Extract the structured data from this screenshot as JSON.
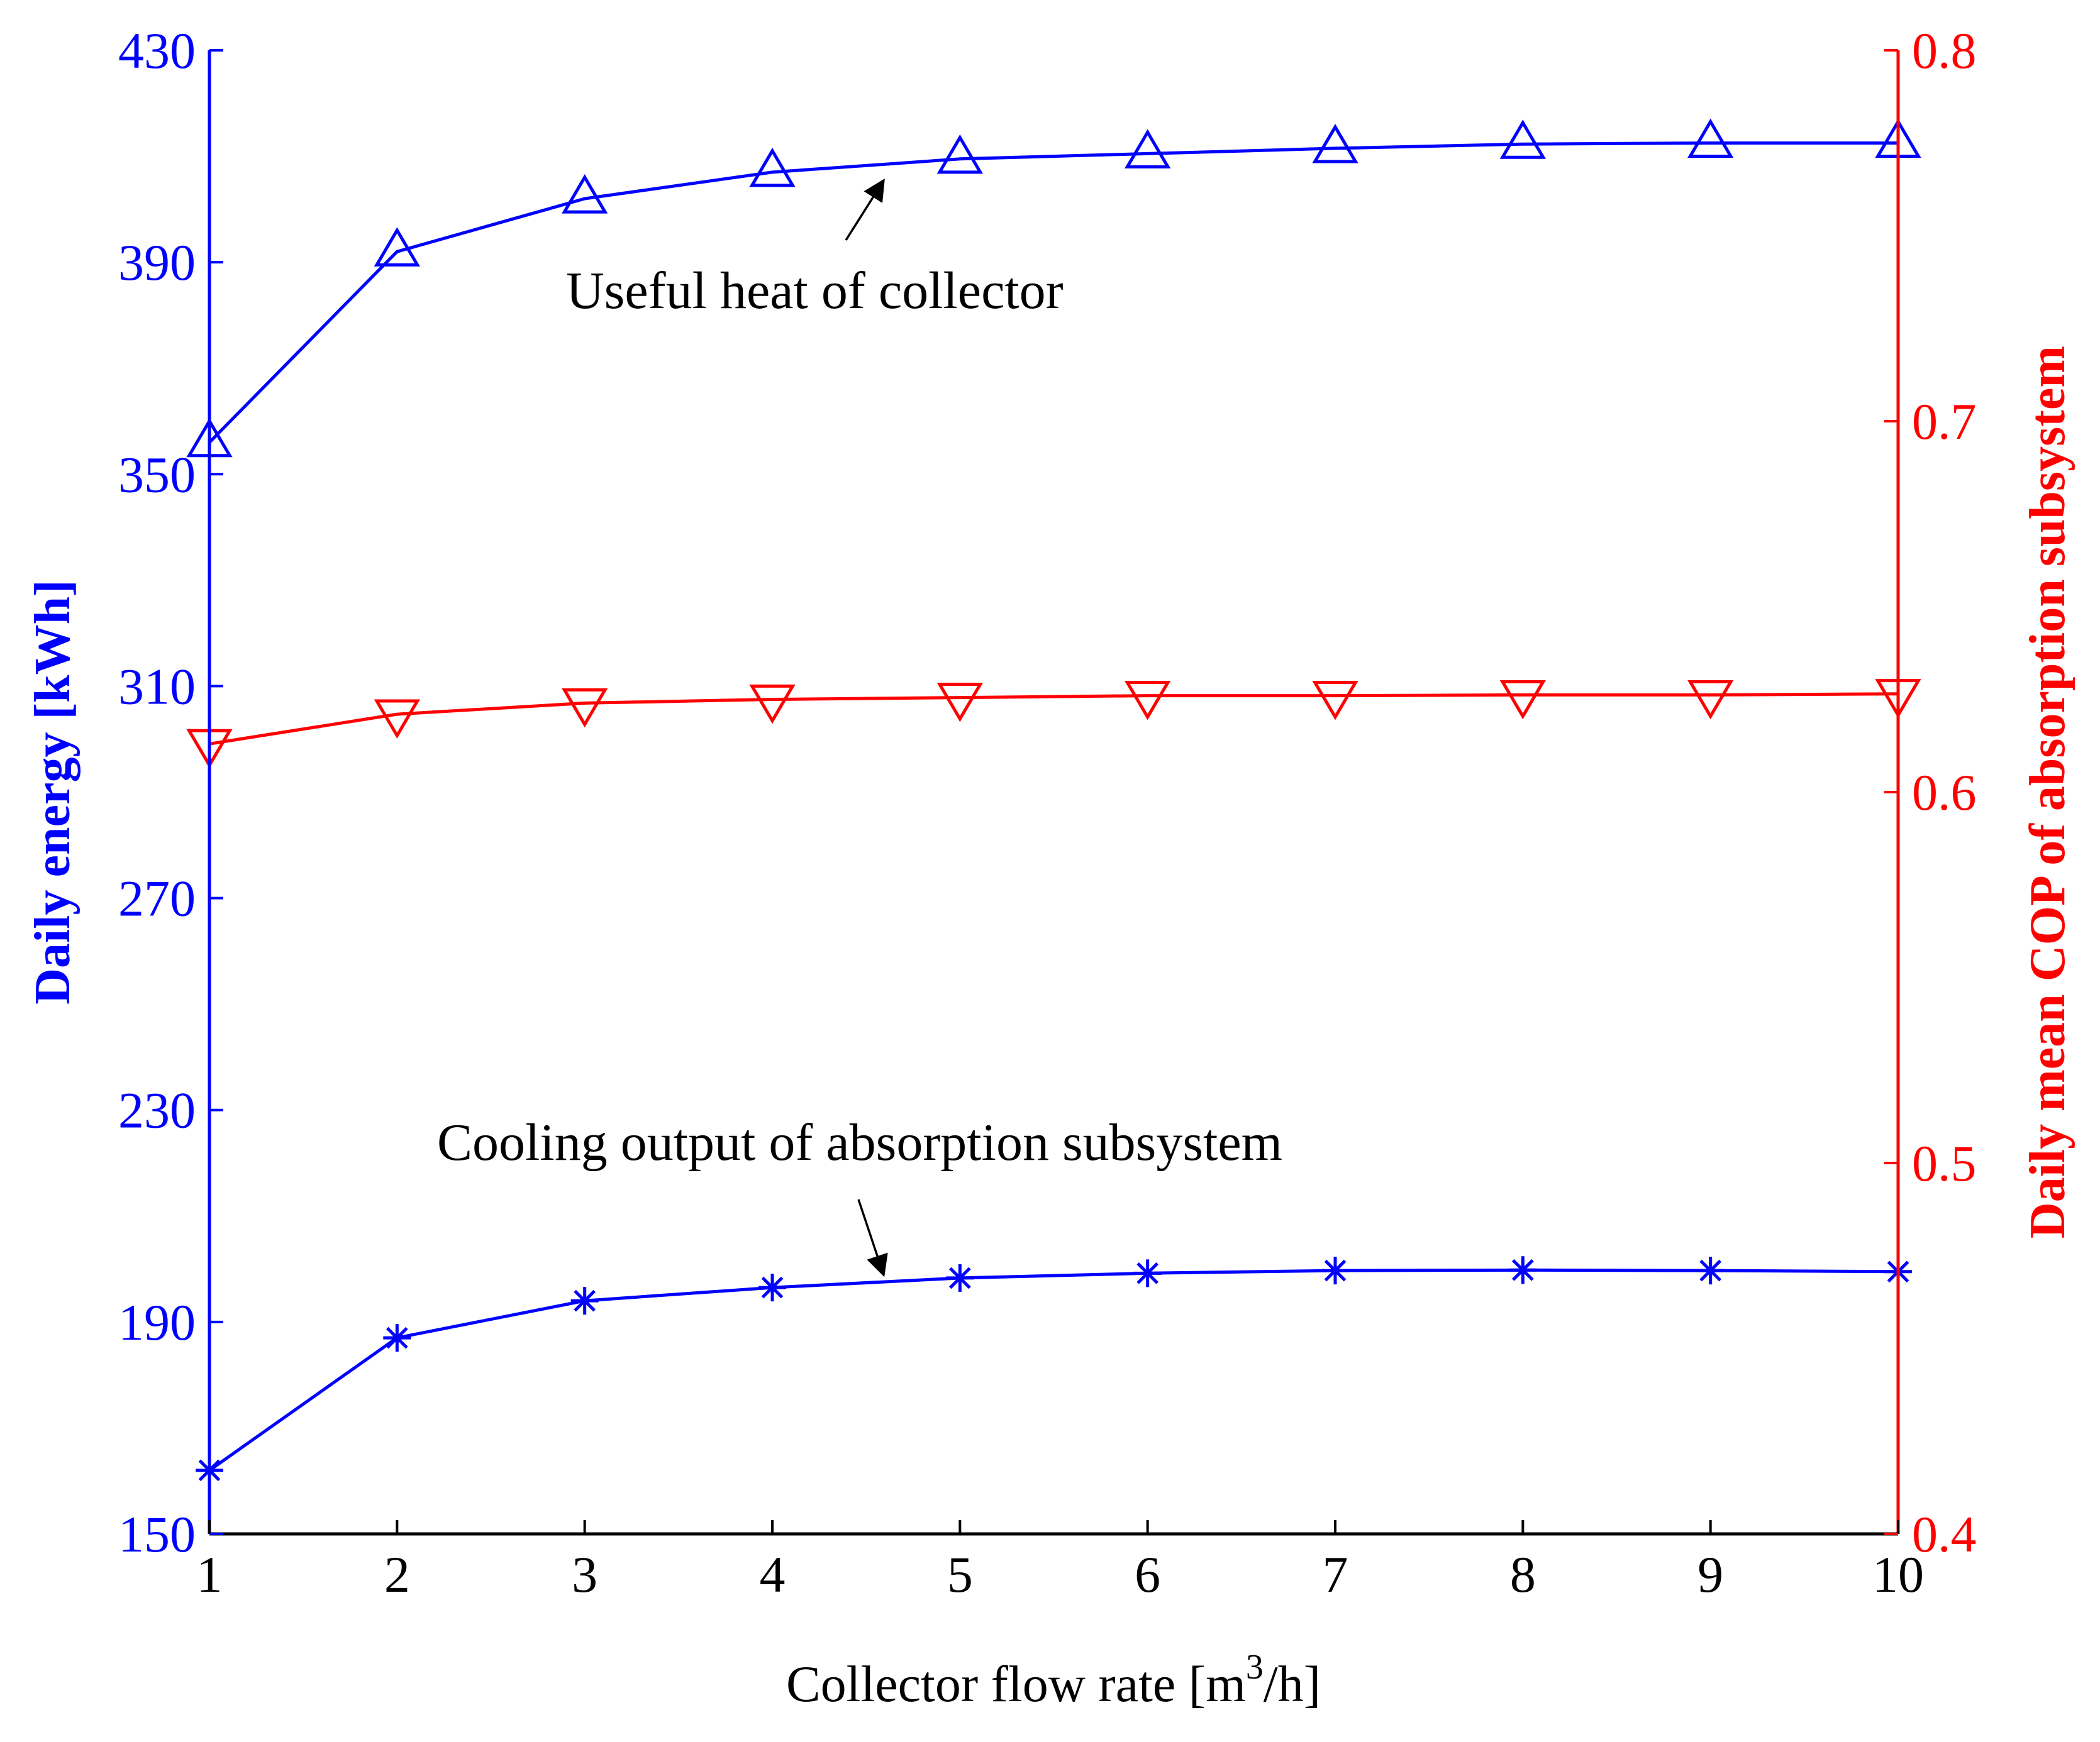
{
  "chart_data": {
    "type": "line",
    "x": [
      1,
      2,
      3,
      4,
      5,
      6,
      7,
      8,
      9,
      10
    ],
    "xlim": [
      1,
      10
    ],
    "xticks": [
      "1",
      "2",
      "3",
      "4",
      "5",
      "6",
      "7",
      "8",
      "9",
      "10"
    ],
    "xlabel": {
      "prefix": "Collector flow rate  [m",
      "sup": "3",
      "suffix": "/h]"
    },
    "y_left": {
      "label": "Daily energy [kWh]",
      "lim": [
        150,
        430
      ],
      "ticks": [
        "150",
        "190",
        "230",
        "270",
        "310",
        "350",
        "390",
        "430"
      ],
      "color": "#0000ff"
    },
    "y_right": {
      "label": "Daily mean COP of absorption subsystem",
      "lim": [
        0.4,
        0.8
      ],
      "ticks": [
        "0.4",
        "0.5",
        "0.6",
        "0.7",
        "0.8"
      ],
      "color": "#ff0000"
    },
    "grid": false,
    "series": [
      {
        "name": "Useful heat of collector",
        "axis": "left",
        "marker": "triangle-up",
        "color": "#0000ff",
        "values": [
          356,
          392,
          402,
          407,
          409.5,
          410.5,
          411.5,
          412.3,
          412.5,
          412.5
        ]
      },
      {
        "name": "Cooling output of absorption subsystem",
        "axis": "left",
        "marker": "asterisk",
        "color": "#0000ff",
        "values": [
          162,
          187,
          194,
          196.5,
          198.3,
          199.2,
          199.7,
          199.8,
          199.7,
          199.5
        ]
      },
      {
        "name": "Daily mean COP",
        "axis": "right",
        "marker": "triangle-down",
        "color": "#ff0000",
        "values": [
          0.613,
          0.621,
          0.624,
          0.625,
          0.6255,
          0.626,
          0.626,
          0.6262,
          0.6262,
          0.6265
        ]
      }
    ],
    "annotations": [
      {
        "text": "Useful heat of collector",
        "series": 0
      },
      {
        "text": "Cooling output of absorption subsystem",
        "series": 1
      }
    ]
  }
}
